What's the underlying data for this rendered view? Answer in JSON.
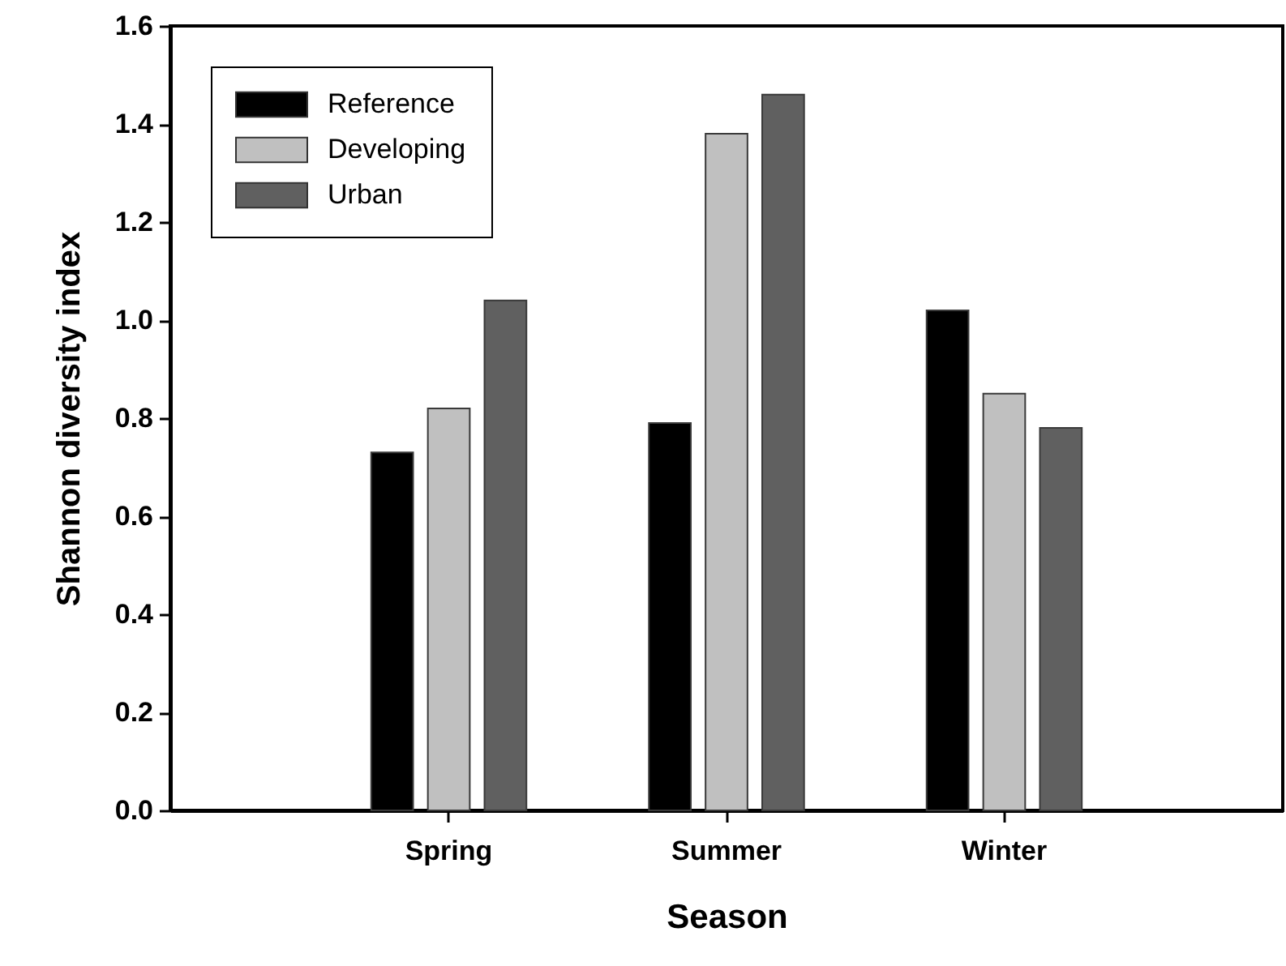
{
  "chart_data": {
    "type": "bar",
    "xlabel": "Season",
    "ylabel": "Shannon diversity index",
    "categories": [
      "Spring",
      "Summer",
      "Winter"
    ],
    "series": [
      {
        "name": "Reference",
        "color": "#000000",
        "values": [
          0.73,
          0.79,
          1.02
        ]
      },
      {
        "name": "Developing",
        "color": "#c0c0c0",
        "values": [
          0.82,
          1.38,
          0.85
        ]
      },
      {
        "name": "Urban",
        "color": "#606060",
        "values": [
          1.04,
          1.46,
          0.78
        ]
      }
    ],
    "ylim": [
      0,
      1.6
    ],
    "yticks": [
      {
        "value": 0,
        "label": "0.0"
      },
      0.2,
      0.4,
      0.6,
      0.8,
      {
        "value": 1,
        "label": "1.0"
      },
      1.2,
      1.4,
      1.6
    ],
    "grid": false,
    "legend": "top left"
  }
}
